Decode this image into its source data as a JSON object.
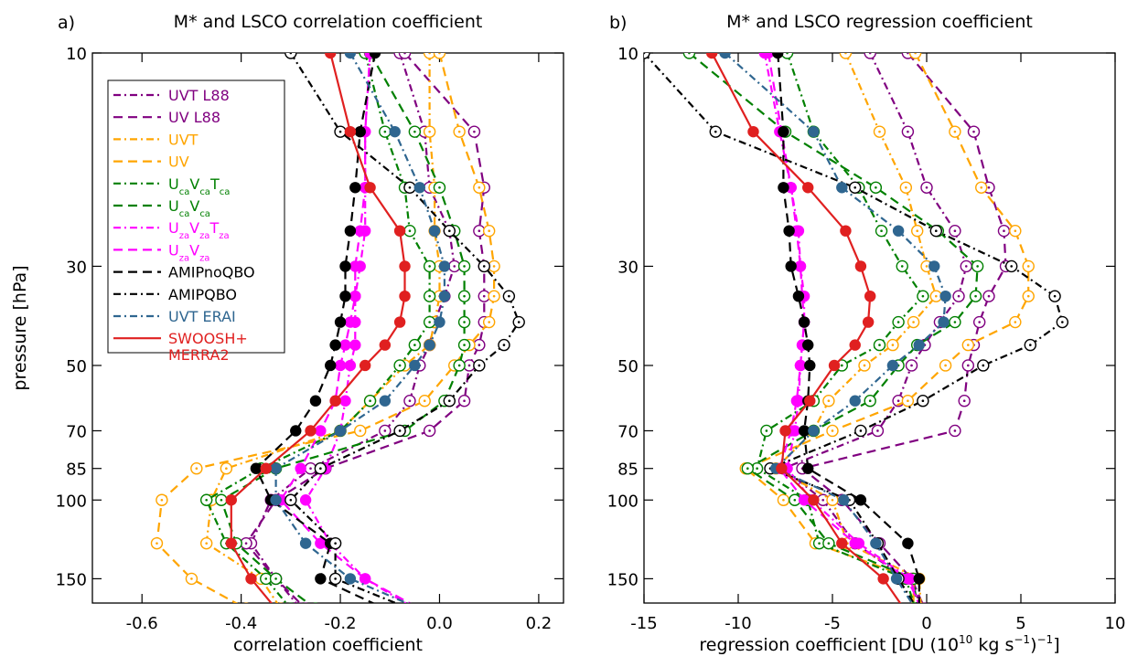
{
  "figure": {
    "ylabel": "pressure [hPa]",
    "y_ticks": [
      10,
      30,
      50,
      70,
      85,
      100,
      150
    ]
  },
  "legend": [
    {
      "label": "UVT L88",
      "color": "#800080",
      "dash": "dashdot",
      "marker": "open"
    },
    {
      "label": "UV L88",
      "color": "#800080",
      "dash": "dashed",
      "marker": "open"
    },
    {
      "label": "UVT",
      "color": "#FFA500",
      "dash": "dashdot",
      "marker": "open"
    },
    {
      "label": "UV",
      "color": "#FFA500",
      "dash": "dashed",
      "marker": "open"
    },
    {
      "label": "UcaVcaTca",
      "html": "U<tspan baseline-shift='sub' font-size='10'>ca</tspan>V<tspan baseline-shift='sub' font-size='10'>ca</tspan>T<tspan baseline-shift='sub' font-size='10'>ca</tspan>",
      "color": "#008000",
      "dash": "dashdot",
      "marker": "open"
    },
    {
      "label": "UcaVca",
      "html": "U<tspan baseline-shift='sub' font-size='10'>ca</tspan>V<tspan baseline-shift='sub' font-size='10'>ca</tspan>",
      "color": "#008000",
      "dash": "dashed",
      "marker": "open"
    },
    {
      "label": "UzaVzaTza",
      "html": "U<tspan baseline-shift='sub' font-size='10'>za</tspan>V<tspan baseline-shift='sub' font-size='10'>za</tspan>T<tspan baseline-shift='sub' font-size='10'>za</tspan>",
      "color": "#FF00FF",
      "dash": "dashdot",
      "marker": "filled"
    },
    {
      "label": "UzaVza",
      "html": "U<tspan baseline-shift='sub' font-size='10'>za</tspan>V<tspan baseline-shift='sub' font-size='10'>za</tspan>",
      "color": "#FF00FF",
      "dash": "dashed",
      "marker": "filled"
    },
    {
      "label": "AMIPnoQBO",
      "color": "#000000",
      "dash": "dashed",
      "marker": "filled"
    },
    {
      "label": "AMIPQBO",
      "color": "#000000",
      "dash": "dashdot",
      "marker": "open"
    },
    {
      "label": "UVT ERAI",
      "color": "#2F6690",
      "dash": "dashdot",
      "marker": "filled"
    },
    {
      "label": "SWOOSH+ MERRA2",
      "lines": [
        "SWOOSH+",
        "MERRA2"
      ],
      "color": "#E02020",
      "dash": "solid",
      "marker": "filled"
    }
  ],
  "chart_data": [
    {
      "panel_label": "a)",
      "title": "M* and LSCO correlation coefficient",
      "type": "line",
      "xlabel": "correlation coefficient",
      "xlim": [
        -0.7,
        0.25
      ],
      "x_ticks": [
        -0.6,
        -0.4,
        -0.2,
        0.0,
        0.2
      ],
      "x_tick_labels": [
        "-0.6",
        "-0.4",
        "-0.2",
        "0.0",
        "0.2"
      ],
      "ylabel": "pressure [hPa]",
      "ylim": [
        10,
        170
      ],
      "y_scale": "log",
      "pressure": [
        10,
        15,
        20,
        25,
        30,
        35,
        40,
        45,
        50,
        60,
        70,
        85,
        100,
        125,
        150,
        175
      ],
      "series": [
        {
          "name": "UVT L88",
          "values": [
            -0.08,
            -0.03,
            -0.02,
            0.02,
            0.03,
            0.01,
            -0.01,
            -0.02,
            -0.04,
            -0.06,
            -0.11,
            -0.26,
            -0.34,
            -0.38,
            -0.33,
            -0.28
          ]
        },
        {
          "name": "UV L88",
          "values": [
            -0.07,
            0.07,
            0.09,
            0.08,
            0.09,
            0.09,
            0.09,
            0.08,
            0.06,
            0.05,
            -0.02,
            -0.23,
            -0.33,
            -0.39,
            -0.33,
            -0.27
          ]
        },
        {
          "name": "UVT",
          "values": [
            -0.02,
            -0.02,
            -0.01,
            -0.01,
            0.0,
            0.0,
            -0.01,
            -0.02,
            -0.07,
            -0.14,
            -0.2,
            -0.43,
            -0.46,
            -0.47,
            -0.36,
            -0.32
          ]
        },
        {
          "name": "UV",
          "values": [
            0.0,
            0.04,
            0.08,
            0.1,
            0.11,
            0.11,
            0.1,
            0.06,
            0.03,
            -0.03,
            -0.16,
            -0.49,
            -0.56,
            -0.57,
            -0.5,
            -0.39
          ]
        },
        {
          "name": "UcaVcaTca",
          "values": [
            -0.15,
            -0.11,
            -0.07,
            -0.06,
            -0.02,
            -0.02,
            -0.02,
            -0.05,
            -0.08,
            -0.14,
            -0.2,
            -0.36,
            -0.47,
            -0.43,
            -0.35,
            -0.3
          ]
        },
        {
          "name": "UcaVca",
          "values": [
            -0.14,
            -0.05,
            0.0,
            0.03,
            0.05,
            0.05,
            0.05,
            0.05,
            0.04,
            0.01,
            -0.07,
            -0.33,
            -0.44,
            -0.41,
            -0.33,
            -0.25
          ]
        },
        {
          "name": "UzaVzaTza",
          "values": [
            -0.14,
            -0.15,
            -0.15,
            -0.15,
            -0.16,
            -0.17,
            -0.17,
            -0.17,
            -0.18,
            -0.19,
            -0.2,
            -0.23,
            -0.27,
            -0.22,
            -0.15,
            -0.05
          ]
        },
        {
          "name": "UzaVza",
          "values": [
            -0.14,
            -0.15,
            -0.15,
            -0.16,
            -0.17,
            -0.17,
            -0.18,
            -0.19,
            -0.2,
            -0.21,
            -0.24,
            -0.28,
            -0.32,
            -0.24,
            -0.15,
            -0.04
          ]
        },
        {
          "name": "AMIPnoQBO",
          "values": [
            -0.13,
            -0.16,
            -0.17,
            -0.18,
            -0.19,
            -0.19,
            -0.2,
            -0.21,
            -0.22,
            -0.25,
            -0.29,
            -0.37,
            -0.34,
            -0.22,
            -0.24,
            -0.11
          ]
        },
        {
          "name": "AMIPQBO",
          "values": [
            -0.3,
            -0.2,
            -0.06,
            0.02,
            0.09,
            0.14,
            0.16,
            0.13,
            0.08,
            0.02,
            -0.08,
            -0.24,
            -0.3,
            -0.21,
            -0.21,
            -0.06
          ]
        },
        {
          "name": "UVT ERAI",
          "values": [
            -0.18,
            -0.09,
            -0.04,
            -0.01,
            0.01,
            0.01,
            0.0,
            -0.02,
            -0.05,
            -0.11,
            -0.2,
            -0.33,
            -0.33,
            -0.27,
            -0.18,
            -0.04
          ]
        },
        {
          "name": "SWOOSH+ MERRA2",
          "values": [
            -0.22,
            -0.18,
            -0.14,
            -0.08,
            -0.07,
            -0.07,
            -0.08,
            -0.11,
            -0.15,
            -0.21,
            -0.26,
            -0.35,
            -0.42,
            -0.42,
            -0.38,
            -0.33
          ]
        }
      ]
    },
    {
      "panel_label": "b)",
      "title": "M* and LSCO regression coefficient",
      "type": "line",
      "xlabel": "regression coefficient [DU (10^10 kg s^-1)^-1]",
      "xlabel_parts": [
        "regression coefficient [DU (10",
        "10",
        " kg s",
        "−1",
        ")",
        "−1",
        "]"
      ],
      "xlim": [
        -15,
        10
      ],
      "x_ticks": [
        -15,
        -10,
        -5,
        0,
        5,
        10
      ],
      "x_tick_labels": [
        "-15",
        "-10",
        "-5",
        "0",
        "5",
        "10"
      ],
      "ylabel": "pressure [hPa]",
      "ylim": [
        10,
        170
      ],
      "y_scale": "log",
      "pressure": [
        10,
        15,
        20,
        25,
        30,
        35,
        40,
        45,
        50,
        60,
        70,
        85,
        100,
        125,
        150,
        175
      ],
      "series": [
        {
          "name": "UVT L88",
          "values": [
            -3.0,
            -1.0,
            0.0,
            1.5,
            2.1,
            1.7,
            0.7,
            -0.1,
            -0.8,
            -1.5,
            -2.6,
            -7.6,
            -5.5,
            -3.8,
            -1.1,
            -0.1
          ]
        },
        {
          "name": "UV L88",
          "values": [
            -1.0,
            2.5,
            3.3,
            4.1,
            4.2,
            3.3,
            2.8,
            2.5,
            2.2,
            2.0,
            1.5,
            -6.6,
            -4.5,
            -2.5,
            -0.8,
            -0.1
          ]
        },
        {
          "name": "UVT",
          "values": [
            -4.3,
            -2.5,
            -1.1,
            -0.5,
            0.0,
            0.5,
            -0.7,
            -1.8,
            -3.3,
            -5.2,
            -6.0,
            -8.0,
            -5.0,
            -4.2,
            -0.4,
            -0.3
          ]
        },
        {
          "name": "UV",
          "values": [
            -0.6,
            1.5,
            2.9,
            4.7,
            5.4,
            5.4,
            4.7,
            2.2,
            1.0,
            -1.0,
            -5.0,
            -9.6,
            -7.6,
            -5.9,
            -0.7,
            -0.7
          ]
        },
        {
          "name": "UcaVcaTca",
          "values": [
            -7.4,
            -6.0,
            -3.6,
            -2.4,
            -1.3,
            -0.2,
            -1.5,
            -2.5,
            -4.5,
            -6.0,
            -8.5,
            -9.0,
            -6.3,
            -5.7,
            -1.1,
            -0.6
          ]
        },
        {
          "name": "UcaVca",
          "values": [
            -12.6,
            -7.5,
            -2.7,
            0.6,
            2.7,
            2.6,
            1.5,
            -0.5,
            -1.5,
            -3.0,
            -6.0,
            -9.5,
            -7.0,
            -5.2,
            -0.7,
            -0.5
          ]
        },
        {
          "name": "UzaVzaTza",
          "values": [
            -8.6,
            -7.8,
            -7.2,
            -6.8,
            -6.7,
            -6.5,
            -6.5,
            -6.6,
            -6.7,
            -6.8,
            -7.0,
            -7.4,
            -6.1,
            -3.6,
            -0.9,
            -0.3
          ]
        },
        {
          "name": "UzaVza",
          "values": [
            -8.4,
            -7.7,
            -7.2,
            -6.9,
            -6.7,
            -6.6,
            -6.5,
            -6.6,
            -6.7,
            -6.9,
            -7.2,
            -7.8,
            -6.5,
            -3.8,
            -1.0,
            -0.3
          ]
        },
        {
          "name": "AMIPnoQBO",
          "values": [
            -7.9,
            -7.6,
            -7.6,
            -7.3,
            -7.2,
            -6.8,
            -6.5,
            -6.3,
            -6.2,
            -6.3,
            -6.5,
            -6.3,
            -3.5,
            -1.0,
            -0.4,
            -0.4
          ]
        },
        {
          "name": "AMIPQBO",
          "values": [
            -15.0,
            -11.2,
            -3.8,
            0.5,
            4.5,
            6.8,
            7.2,
            5.5,
            3.0,
            -0.2,
            -3.5,
            -8.3,
            -4.1,
            -2.6,
            -1.5,
            -0.5
          ]
        },
        {
          "name": "UVT ERAI",
          "values": [
            -10.7,
            -6.0,
            -4.5,
            -1.5,
            0.4,
            1.0,
            0.9,
            -0.4,
            -1.8,
            -3.8,
            -6.0,
            -8.0,
            -4.4,
            -2.7,
            -1.6,
            -0.6
          ]
        },
        {
          "name": "SWOOSH+ MERRA2",
          "values": [
            -11.4,
            -9.2,
            -6.3,
            -4.3,
            -3.5,
            -3.0,
            -3.1,
            -3.8,
            -4.9,
            -6.2,
            -7.5,
            -7.7,
            -6.0,
            -4.5,
            -2.3,
            -1.2
          ]
        }
      ]
    }
  ]
}
